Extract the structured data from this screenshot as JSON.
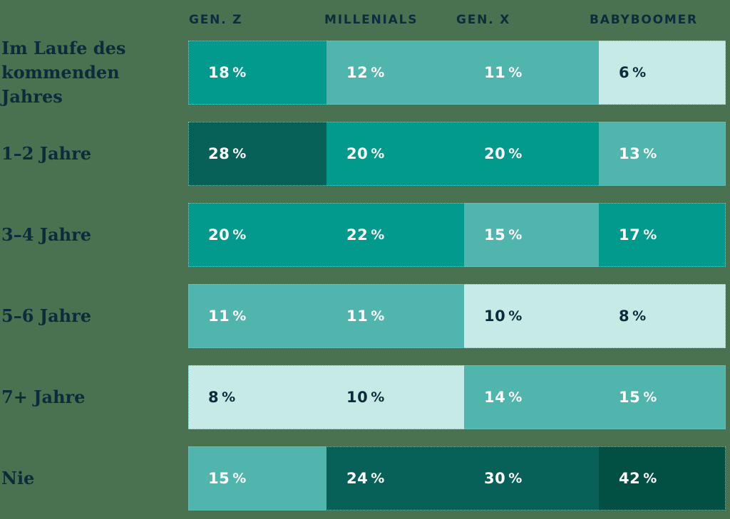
{
  "page": {
    "background_color": "#4a7150",
    "header_text_color": "#0e2c3e",
    "label_text_color": "#0d2b3a"
  },
  "chart_data": {
    "type": "heatmap",
    "title": "",
    "columns": [
      "GEN. Z",
      "MILLENIALS",
      "GEN. X",
      "BABYBOOMER"
    ],
    "rows": [
      "Im Laufe des\nkommenden Jahres",
      "1–2 Jahre",
      "3–4 Jahre",
      "5–6 Jahre",
      "7+ Jahre",
      "Nie"
    ],
    "values": [
      [
        18,
        12,
        11,
        6
      ],
      [
        28,
        20,
        20,
        13
      ],
      [
        20,
        22,
        15,
        17
      ],
      [
        11,
        11,
        10,
        8
      ],
      [
        8,
        10,
        14,
        15
      ],
      [
        15,
        24,
        30,
        42
      ]
    ],
    "value_suffix": "%",
    "color_scale": [
      {
        "max": 10,
        "bg": "#c6eae5",
        "text": "#0d2b3a"
      },
      {
        "max": 15,
        "bg": "#4fb5ad",
        "text": "#ffffff"
      },
      {
        "max": 22,
        "bg": "#019a8c",
        "text": "#ffffff"
      },
      {
        "max": 30,
        "bg": "#076158",
        "text": "#ffffff"
      },
      {
        "max": 100,
        "bg": "#015043",
        "text": "#ffffff"
      }
    ],
    "grid": false,
    "legend": "none",
    "cell_border": "#74c7bf"
  }
}
